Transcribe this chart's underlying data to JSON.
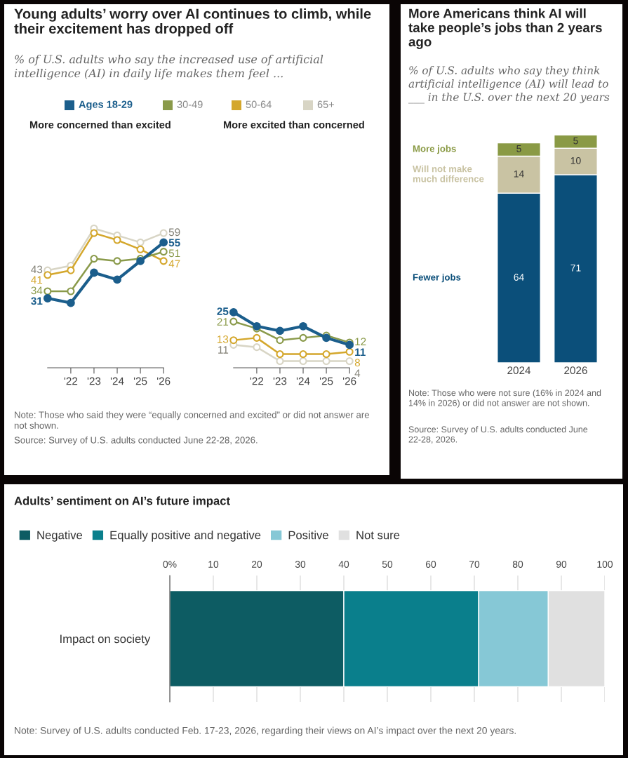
{
  "chart_data": [
    {
      "type": "line",
      "title": "Young adults’ worry over AI continues to climb, while their excitement has dropped off",
      "subtitle": "% of U.S. adults who say the increased use of artificial intelligence (AI) in daily life makes them feel ...",
      "categories": [
        null,
        "'22",
        "'23",
        "'24",
        "'25",
        "'26"
      ],
      "marker": "circle",
      "legend": "top",
      "tick_labels": "x",
      "annotations": [
        "More concerned than excited",
        "Note: Those who said they were “equally concerned and excited” or did not answer are not shown.",
        "Source: Survey of U.S. adults conducted June 22-28, 2026."
      ],
      "series": [
        {
          "name": "Ages 18-29",
          "color": "#1b5e8c",
          "values": [
            31,
            29,
            42,
            39,
            47,
            55
          ],
          "value_labels": [
            "31",
            null,
            null,
            null,
            null,
            "55"
          ]
        },
        {
          "name": "30-49",
          "color": "#8a9a4a",
          "values": [
            34,
            34,
            48,
            47,
            48,
            51
          ],
          "value_labels": [
            "34",
            null,
            null,
            null,
            null,
            "51"
          ]
        },
        {
          "name": "50-64",
          "color": "#d4a72c",
          "values": [
            41,
            43,
            59,
            56,
            52,
            47
          ],
          "value_labels": [
            "41",
            null,
            null,
            null,
            null,
            "47"
          ]
        },
        {
          "name": "65+",
          "color": "#d8d5c5",
          "values": [
            43,
            45,
            61,
            58,
            55,
            59
          ],
          "value_labels": [
            "43",
            null,
            null,
            null,
            null,
            "59"
          ]
        }
      ]
    },
    {
      "type": "line",
      "categories": [
        null,
        "'22",
        "'23",
        "'24",
        "'25",
        "'26"
      ],
      "marker": "circle",
      "tick_labels": "x",
      "annotations": [
        "More excited than concerned"
      ],
      "series": [
        {
          "color": "#1b5e8c",
          "values": [
            25,
            19,
            17,
            19,
            14,
            11
          ],
          "value_labels": [
            "25",
            null,
            null,
            null,
            null,
            "11"
          ]
        },
        {
          "color": "#8a9a4a",
          "values": [
            21,
            18,
            13,
            14,
            15,
            12
          ],
          "value_labels": [
            "21",
            null,
            null,
            null,
            null,
            "12"
          ]
        },
        {
          "color": "#d4a72c",
          "values": [
            13,
            14,
            7,
            7,
            7,
            8
          ],
          "value_labels": [
            "13",
            null,
            null,
            null,
            null,
            "8"
          ]
        },
        {
          "color": "#d8d5c5",
          "values": [
            11,
            10,
            4,
            4,
            4,
            4
          ],
          "value_labels": [
            "11",
            null,
            null,
            null,
            null,
            "4"
          ]
        }
      ]
    },
    {
      "type": "bar",
      "stacked": true,
      "data_labels": true,
      "tick_labels": "x",
      "title": "More Americans think AI will take people’s jobs than 2 years ago",
      "subtitle": "% of U.S. adults who say they think artificial intelligence (AI) will lead to ___ in the U.S. over the next 20 years",
      "categories": [
        "2024",
        "2026"
      ],
      "annotations": [
        "Note: Those who were not sure (16% in 2024 and 14% in 2026) or did not answer are not shown.",
        "Source: Survey of U.S. adults conducted June 22-28, 2026."
      ],
      "series": [
        {
          "name": "Fewer jobs",
          "color": "#0b4f7a",
          "values": [
            64,
            71
          ]
        },
        {
          "name": "Will not make much difference",
          "color": "#c9c3a3",
          "values": [
            14,
            10
          ]
        },
        {
          "name": "More jobs",
          "color": "#8a9a45",
          "values": [
            5,
            5
          ]
        }
      ]
    },
    {
      "type": "bar",
      "orientation": "horizontal",
      "stacked": true,
      "title": "Adults’ sentiment on AI’s future impact",
      "categories": [
        "Impact on society"
      ],
      "xlim": [
        0,
        100
      ],
      "xticks": [
        {
          "value": 0,
          "label": "0%"
        },
        10,
        20,
        30,
        40,
        50,
        60,
        70,
        80,
        90,
        100
      ],
      "grid": "x",
      "legend": "top",
      "annotations": [
        "Note: Survey of U.S. adults conducted Feb. 17-23, 2026, regarding their views on AI’s impact over the next 20 years."
      ],
      "series": [
        {
          "name": "Negative",
          "color": "#0d5c63",
          "values": [
            40
          ]
        },
        {
          "name": "Equally positive and negative",
          "color": "#0a7f8c",
          "values": [
            31
          ]
        },
        {
          "name": "Positive",
          "color": "#86c8d6",
          "values": [
            16
          ]
        },
        {
          "name": "Not sure",
          "color": "#e0e0e0",
          "values": [
            13
          ]
        }
      ]
    }
  ]
}
